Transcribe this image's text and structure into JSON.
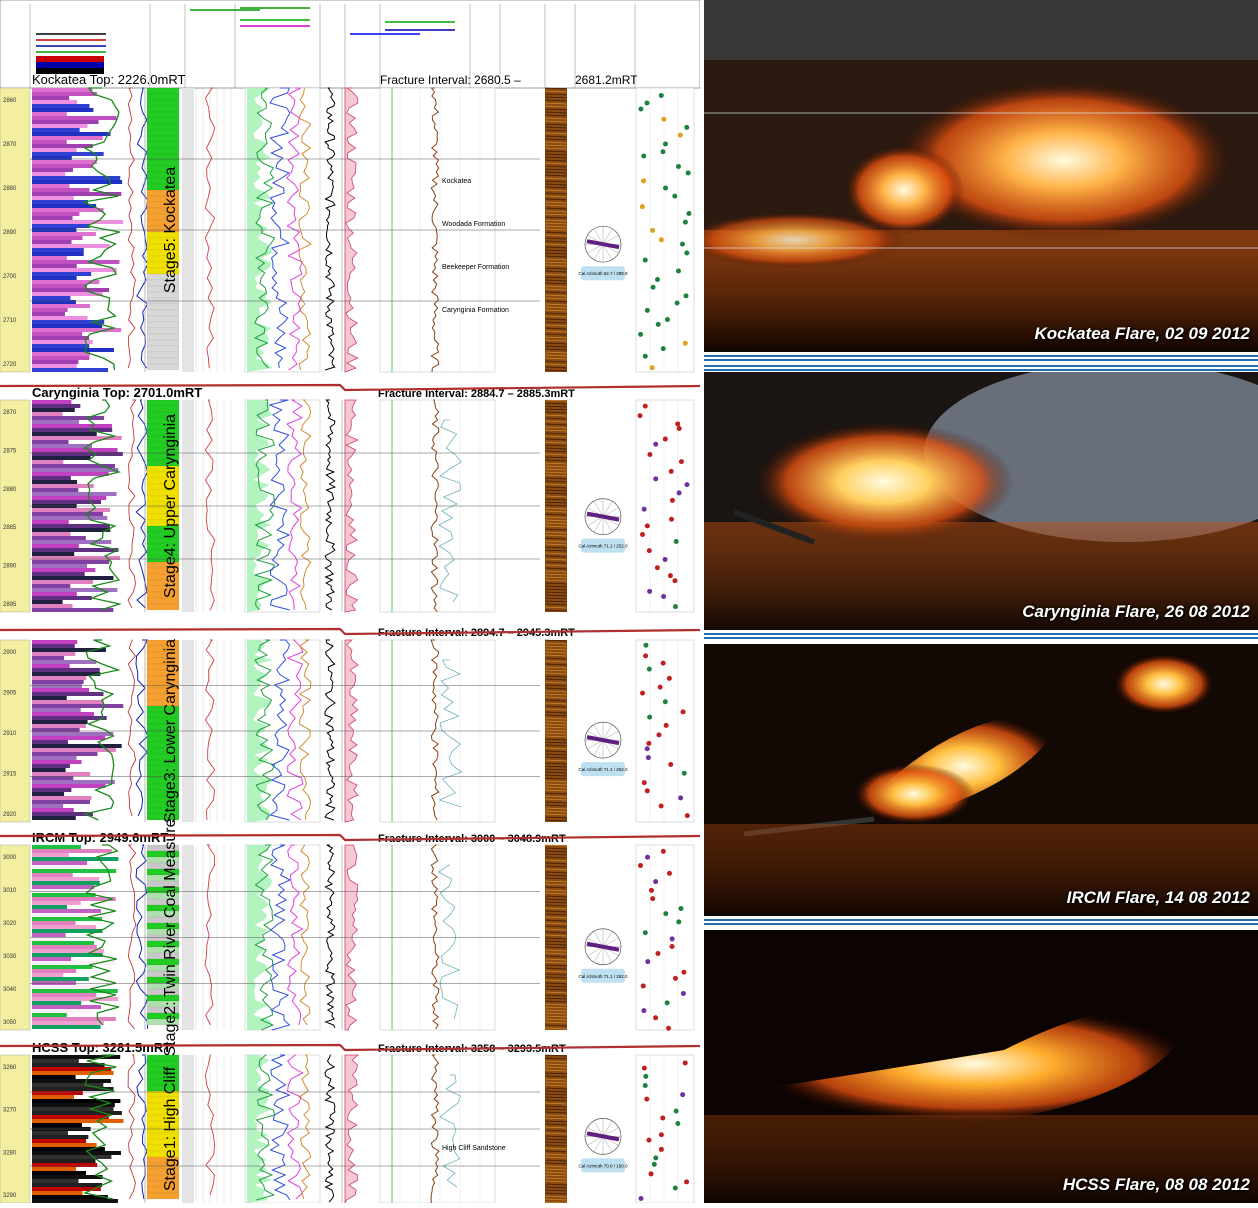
{
  "header": {
    "fracture_interval_top": "Fracture Interval: 2680.5 –",
    "fracture_interval_top_end": "2681.2mRT"
  },
  "stages": [
    {
      "top_label": "Kockatea Top: 2226.0mRT",
      "fracture_label": "",
      "stage_label": "Stage5: Kockatea",
      "depths": [
        "2860",
        "2870",
        "2880",
        "2890",
        "2700",
        "2710",
        "2720"
      ],
      "formations": [
        "Kockatea",
        "Woodada Formation",
        "Beekeeper Formation",
        "Carynginia Formation"
      ],
      "azimuth_note": "Cal Azimuth 62.7 / 288.9"
    },
    {
      "top_label": "Carynginia Top: 2701.0mRT",
      "fracture_label": "Fracture Interval: 2884.7 – 2885.3mRT",
      "stage_label": "Stage4: Upper Carynginia",
      "depths": [
        "2870",
        "2875",
        "2880",
        "2885",
        "2890",
        "2895"
      ],
      "formations": [],
      "azimuth_note": "Cal Azimuth 71.1 / 252.0"
    },
    {
      "top_label": "",
      "fracture_label": "Fracture Interval: 2894.7 – 2945.3mRT",
      "stage_label": "Stage3: Lower Carynginia",
      "depths": [
        "2900",
        "2905",
        "2910",
        "2915",
        "2920"
      ],
      "formations": [],
      "azimuth_note": "Cal Azimuth 71.1 / 252.0"
    },
    {
      "top_label": "IRCM Top: 2949.6mRT",
      "fracture_label": "Fracture Interval: 3000 – 3048.9mRT",
      "stage_label": "Stage2: Twin River Coal Measure",
      "depths": [
        "3000",
        "3010",
        "3020",
        "3030",
        "3040",
        "3050"
      ],
      "formations": [],
      "azimuth_note": "Cal Azimuth 71.1 / 252.0"
    },
    {
      "top_label": "HCSS Top: 3281.5mRT",
      "fracture_label": "Fracture Interval: 3258 – 3293.5mRT",
      "stage_label": "Stage1: High Cliff",
      "depths": [
        "3260",
        "3270",
        "3280",
        "3290"
      ],
      "formations": [
        "High Cliff Sandstone"
      ],
      "azimuth_note": "Cal Azimuth 70.0 / 190.0"
    }
  ],
  "photos": [
    {
      "caption": "Kockatea Flare, 02 09 2012",
      "flame_color": "#ffb347",
      "bg_color": "#2a1a10"
    },
    {
      "caption": "Carynginia Flare, 26 08 2012",
      "flame_color": "#ffd060",
      "bg_color": "#1a1512"
    },
    {
      "caption": "IRCM Flare, 14 08 2012",
      "flame_color": "#ffc040",
      "bg_color": "#120804"
    },
    {
      "caption": "HCSS Flare, 08 08 2012",
      "flame_color": "#ffb030",
      "bg_color": "#0c0402"
    }
  ],
  "colors": {
    "separator_red": "#b03030",
    "lithology_green": "#22cc22",
    "lithology_yellow": "#f0e000",
    "lithology_orange": "#f5a030",
    "track_yellow": "#f3eea0",
    "gr_pink": "#e0a0c8",
    "gr_magenta": "#c040c0"
  }
}
